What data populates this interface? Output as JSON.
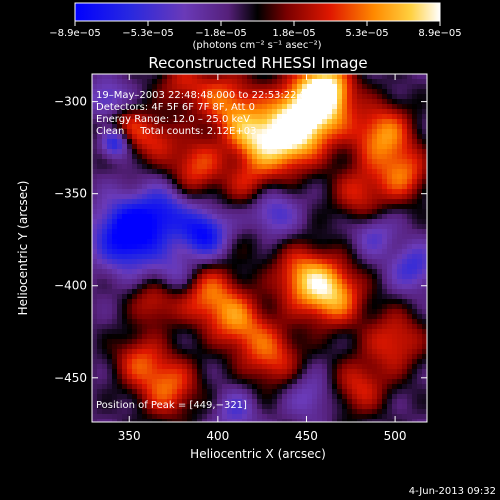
{
  "chart_data": {
    "type": "heatmap",
    "title": "Reconstructed RHESSI Image",
    "xlabel": "Heliocentric X (arcsec)",
    "ylabel": "Heliocentric Y (arcsec)",
    "xlim": [
      329,
      518
    ],
    "ylim": [
      -474,
      -285
    ],
    "x_ticks": [
      350,
      400,
      450,
      500
    ],
    "y_ticks": [
      -300,
      -350,
      -400,
      -450
    ],
    "colorbar": {
      "min": -8.9e-05,
      "max": 8.9e-05,
      "tick_labels": [
        "−8.9e−05",
        "−5.3e−05",
        "−1.8e−05",
        "1.8e−05",
        "5.3e−05",
        "8.9e−05"
      ],
      "unit_label": "(photons cm⁻² s⁻¹ asec⁻²)"
    },
    "annotations": {
      "time": "19–May–2003 22:48:48.000 to 22:53:22.000",
      "detectors": "Detectors: 4F 5F 6F 7F 8F, Att 0",
      "energy": "Energy Range: 12.0 – 25.0 keV",
      "clean": "Clean     Total counts: 2.12E+03",
      "peak": "Position of Peak = [449,−321]"
    },
    "peak": [
      449,
      -321
    ],
    "grid": false
  },
  "footer": {
    "date": "4-Jun-2013 09:32"
  }
}
